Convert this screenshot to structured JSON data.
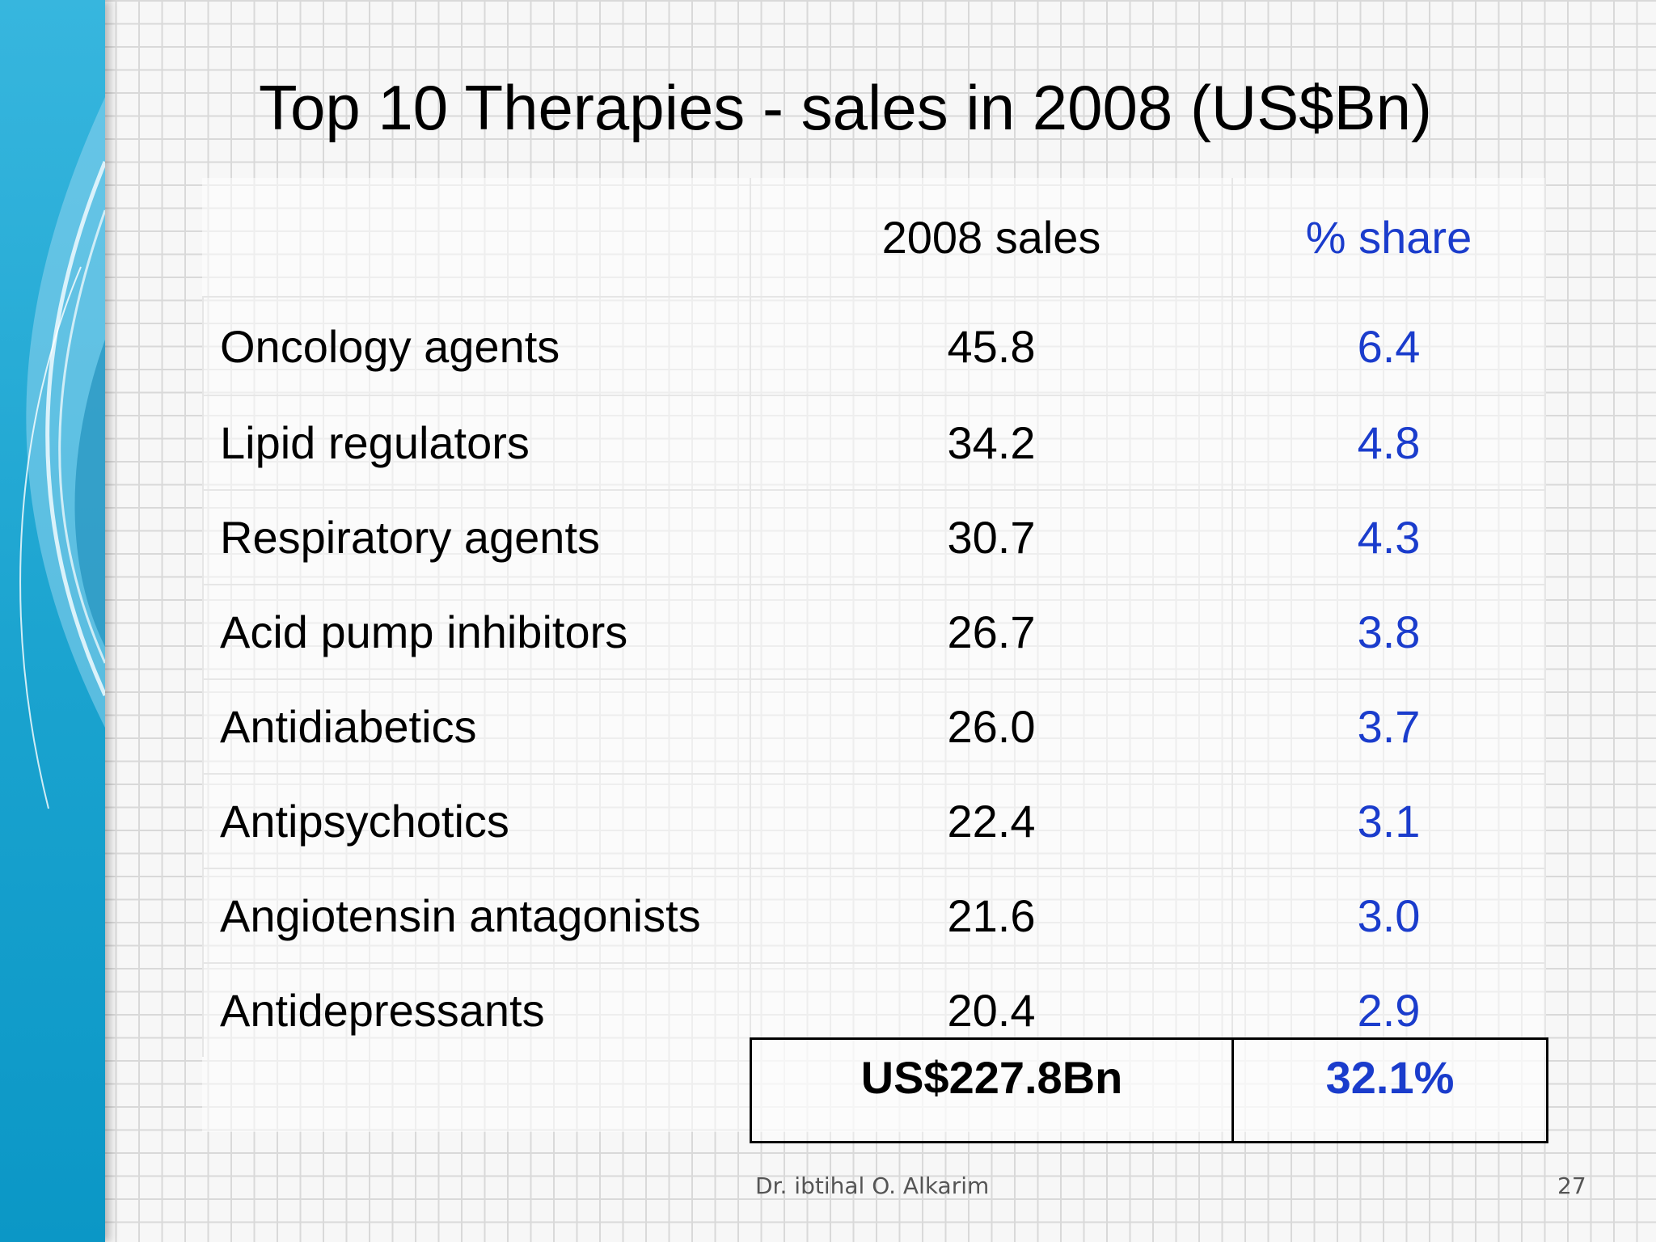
{
  "slide": {
    "title": "Top 10 Therapies - sales in 2008 (US$Bn)",
    "footer_author": "Dr. ibtihal O. Alkarim",
    "page_number": "27"
  },
  "table": {
    "headers": {
      "name": "",
      "sales": "2008 sales",
      "share": "% share"
    },
    "rows": [
      {
        "name": "Oncology agents",
        "sales": "45.8",
        "share": "6.4"
      },
      {
        "name": "Lipid regulators",
        "sales": "34.2",
        "share": "4.8"
      },
      {
        "name": "Respiratory agents",
        "sales": "30.7",
        "share": "4.3"
      },
      {
        "name": "Acid pump inhibitors",
        "sales": "26.7",
        "share": "3.8"
      },
      {
        "name": "Antidiabetics",
        "sales": "26.0",
        "share": "3.7"
      },
      {
        "name": "Antipsychotics",
        "sales": "22.4",
        "share": "3.1"
      },
      {
        "name": "Angiotensin antagonists",
        "sales": "21.6",
        "share": "3.0"
      },
      {
        "name": "Antidepressants",
        "sales": "20.4",
        "share": "2.9"
      }
    ],
    "total": {
      "sales": "US$227.8Bn",
      "share": "32.1%"
    }
  },
  "colors": {
    "share_text": "#1a3ccc",
    "side_band": "#1aa3cf"
  }
}
